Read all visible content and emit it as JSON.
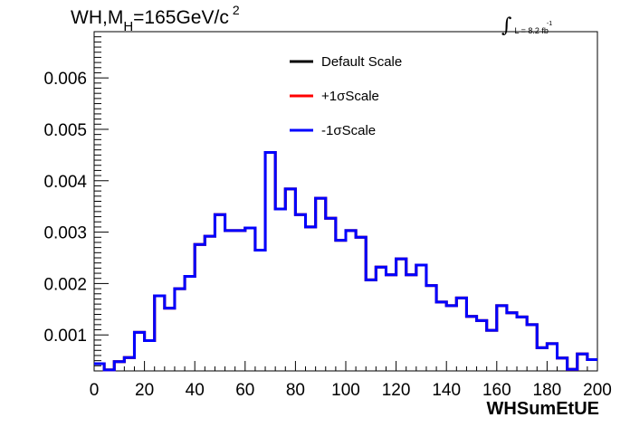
{
  "chart_data": {
    "type": "line",
    "style": "step-histogram",
    "title_main": "WH,M",
    "title_sub": "H",
    "title_rest": "=165GeV/c",
    "title_sup": "2",
    "lumi_text": "L = 8.2 fb",
    "lumi_sup": "-1",
    "lumi_integral": "∫",
    "xlabel": "WHSumEtUE",
    "ylabel": "",
    "xlim": [
      0,
      200
    ],
    "ylim": [
      0.0003,
      0.0069
    ],
    "x_ticks": [
      0,
      20,
      40,
      60,
      80,
      100,
      120,
      140,
      160,
      180,
      200
    ],
    "x_tick_labels": [
      "0",
      "20",
      "40",
      "60",
      "80",
      "100",
      "120",
      "140",
      "160",
      "180",
      "200"
    ],
    "y_ticks": [
      0.001,
      0.002,
      0.003,
      0.004,
      0.005,
      0.006
    ],
    "y_tick_labels": [
      "0.001",
      "0.002",
      "0.003",
      "0.004",
      "0.005",
      "0.006"
    ],
    "legend_position": "top-center",
    "bin_edges_start": 0,
    "bin_width": 4,
    "series": [
      {
        "name": "Default Scale",
        "color": "#000000",
        "values": [
          0.00044,
          0.00032,
          0.00048,
          0.00056,
          0.00105,
          0.00089,
          0.00176,
          0.00152,
          0.0019,
          0.00214,
          0.00276,
          0.00292,
          0.00334,
          0.00303,
          0.00303,
          0.00308,
          0.00265,
          0.00455,
          0.00345,
          0.00384,
          0.00334,
          0.0031,
          0.00366,
          0.00327,
          0.00284,
          0.00303,
          0.0029,
          0.00207,
          0.00232,
          0.00217,
          0.00248,
          0.00217,
          0.00236,
          0.00196,
          0.00164,
          0.00157,
          0.00172,
          0.00136,
          0.00128,
          0.00109,
          0.00157,
          0.00143,
          0.00135,
          0.0012,
          0.00075,
          0.00083,
          0.00055,
          0.00033,
          0.00063,
          0.00052
        ]
      },
      {
        "name": "+1σScale",
        "color": "#ff0000",
        "values": [
          0.00044,
          0.00032,
          0.00048,
          0.00056,
          0.00105,
          0.00089,
          0.00176,
          0.00152,
          0.0019,
          0.00214,
          0.00276,
          0.00292,
          0.00334,
          0.00303,
          0.00303,
          0.00308,
          0.00265,
          0.00455,
          0.00345,
          0.00384,
          0.00334,
          0.0031,
          0.00366,
          0.00327,
          0.00284,
          0.00303,
          0.0029,
          0.00207,
          0.00232,
          0.00217,
          0.00248,
          0.00217,
          0.00236,
          0.00196,
          0.00164,
          0.00157,
          0.00172,
          0.00136,
          0.00128,
          0.00109,
          0.00157,
          0.00143,
          0.00135,
          0.0012,
          0.00075,
          0.00083,
          0.00055,
          0.00033,
          0.00063,
          0.00052
        ]
      },
      {
        "name": "-1σScale",
        "color": "#0000ff",
        "values": [
          0.00044,
          0.00032,
          0.00048,
          0.00056,
          0.00105,
          0.00089,
          0.00176,
          0.00152,
          0.0019,
          0.00214,
          0.00276,
          0.00292,
          0.00334,
          0.00303,
          0.00303,
          0.00308,
          0.00265,
          0.00455,
          0.00345,
          0.00384,
          0.00334,
          0.0031,
          0.00366,
          0.00327,
          0.00284,
          0.00303,
          0.0029,
          0.00207,
          0.00232,
          0.00217,
          0.00248,
          0.00217,
          0.00236,
          0.00196,
          0.00164,
          0.00157,
          0.00172,
          0.00136,
          0.00128,
          0.00109,
          0.00157,
          0.00143,
          0.00135,
          0.0012,
          0.00075,
          0.00083,
          0.00055,
          0.00033,
          0.00063,
          0.00052
        ]
      }
    ]
  }
}
